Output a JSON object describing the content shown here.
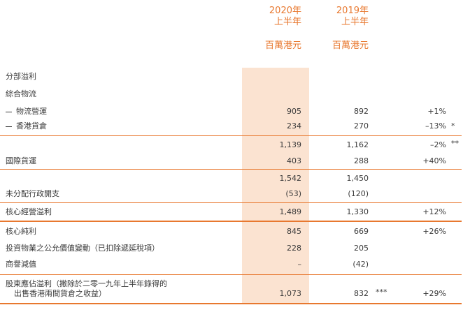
{
  "headers": {
    "y2020_line1": "2020年",
    "y2020_line2": "上半年",
    "y2020_unit": "百萬港元",
    "y2019_line1": "2019年",
    "y2019_line2": "上半年",
    "y2019_unit": "百萬港元"
  },
  "sections": {
    "segment_profit": "分部溢利",
    "integrated_logistics": "綜合物流"
  },
  "rows": [
    {
      "label": "物流營運",
      "v2020": "905",
      "v2019": "892",
      "change": "+1%",
      "note": ""
    },
    {
      "label": "香港貨倉",
      "v2020": "234",
      "v2019": "270",
      "change": "–13%",
      "note": "*"
    },
    {
      "label": "",
      "v2020": "1,139",
      "v2019": "1,162",
      "change": "–2%",
      "note": "**"
    },
    {
      "label": "國際貨運",
      "v2020": "403",
      "v2019": "288",
      "change": "+40%",
      "note": ""
    },
    {
      "label": "",
      "v2020": "1,542",
      "v2019": "1,450",
      "change": "",
      "note": ""
    },
    {
      "label": "未分配行政開支",
      "v2020": "(53)",
      "v2019": "(120)",
      "change": "",
      "note": ""
    },
    {
      "label": "核心經營溢利",
      "v2020": "1,489",
      "v2019": "1,330",
      "change": "+12%",
      "note": ""
    },
    {
      "label": "核心純利",
      "v2020": "845",
      "v2019": "669",
      "change": "+26%",
      "note": ""
    },
    {
      "label": "投資物業之公允價值變動（已扣除遞延稅項）",
      "v2020": "228",
      "v2019": "205",
      "change": "",
      "note": ""
    },
    {
      "label": "商譽減值",
      "v2020": "–",
      "v2019": "(42)",
      "change": "",
      "note": ""
    },
    {
      "label_line1": "股東應佔溢利（撇除於二零一九年上半年錄得的",
      "label_line2": "出售香港兩間貨倉之收益）",
      "v2020": "1,073",
      "v2019": "832",
      "v2019_note": "***",
      "change": "+29%"
    }
  ],
  "colors": {
    "accent": "#e8782f",
    "highlight": "#fbe3d1",
    "text": "#3a3a3a"
  }
}
